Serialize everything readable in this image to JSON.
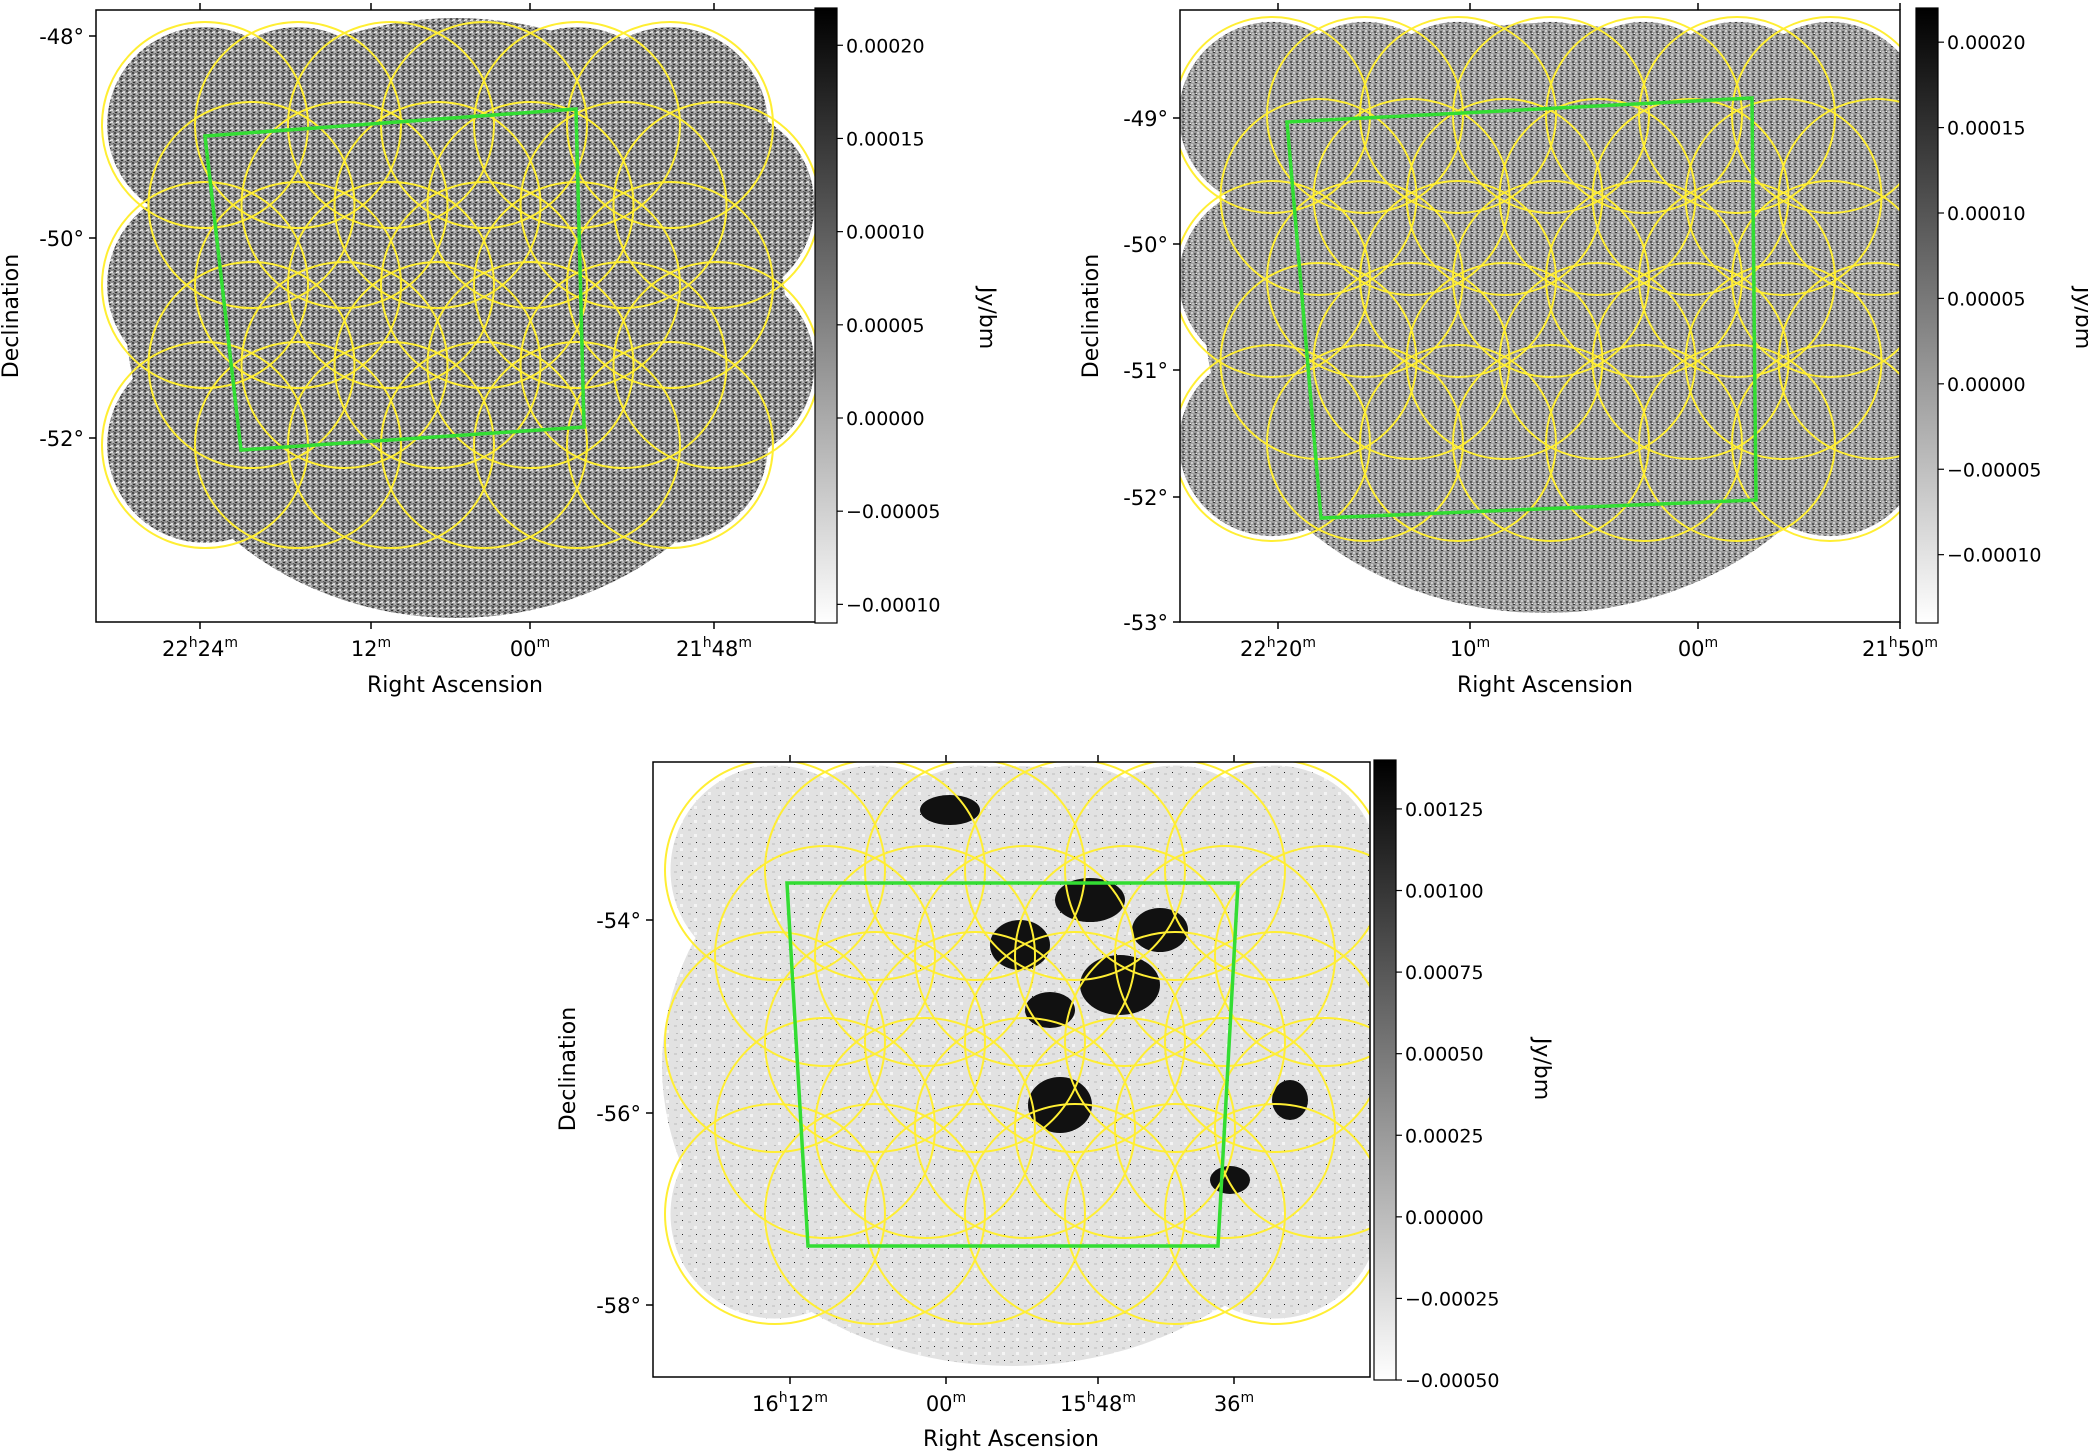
{
  "chart_data": [
    {
      "type": "heatmap",
      "panel": "top-left",
      "xlabel": "Right Ascension",
      "ylabel": "Declination",
      "x_ticks": [
        {
          "label_main": "22",
          "label_sup_h": "h",
          "label_mid": "24",
          "label_sup_m": "m",
          "label": "22h24m"
        },
        {
          "label_main": "",
          "label_sup_h": "",
          "label_mid": "12",
          "label_sup_m": "m",
          "label": "12m"
        },
        {
          "label_main": "",
          "label_sup_h": "",
          "label_mid": "00",
          "label_sup_m": "m",
          "label": "00m"
        },
        {
          "label_main": "21",
          "label_sup_h": "h",
          "label_mid": "48",
          "label_sup_m": "m",
          "label": "21h48m"
        }
      ],
      "y_ticks": [
        "-48°",
        "-50°",
        "-52°"
      ],
      "y_tick_values": [
        -48,
        -50,
        -52
      ],
      "dec_range": [
        -53.9,
        -47.7
      ],
      "colorbar": {
        "label": "Jy/bm",
        "range": [
          -0.00011,
          0.00022
        ],
        "ticks": [
          "0.00020",
          "0.00015",
          "0.00010",
          "0.00005",
          "0.00000",
          "−0.00005",
          "−0.00010"
        ],
        "tick_values": [
          0.0002,
          0.00015,
          0.0001,
          5e-05,
          0.0,
          -5e-05,
          -0.0001
        ]
      },
      "overlay": {
        "pointing_circles_color": "#ffee33",
        "footprint_color": "#33dd33"
      },
      "image_style": "noise"
    },
    {
      "type": "heatmap",
      "panel": "top-right",
      "xlabel": "Right Ascension",
      "ylabel": "Declination",
      "x_ticks": [
        {
          "label_main": "22",
          "label_sup_h": "h",
          "label_mid": "20",
          "label_sup_m": "m",
          "label": "22h20m"
        },
        {
          "label_main": "",
          "label_sup_h": "",
          "label_mid": "10",
          "label_sup_m": "m",
          "label": "10m"
        },
        {
          "label_main": "",
          "label_sup_h": "",
          "label_mid": "00",
          "label_sup_m": "m",
          "label": "00m"
        },
        {
          "label_main": "21",
          "label_sup_h": "h",
          "label_mid": "50",
          "label_sup_m": "m",
          "label": "21h50m"
        }
      ],
      "y_ticks": [
        "-49°",
        "-50°",
        "-51°",
        "-52°",
        "-53°"
      ],
      "y_tick_values": [
        -49,
        -50,
        -51,
        -52,
        -53
      ],
      "dec_range": [
        -53.0,
        -48.2
      ],
      "colorbar": {
        "label": "Jy/bm",
        "range": [
          -0.00014,
          0.00022
        ],
        "ticks": [
          "0.00020",
          "0.00015",
          "0.00010",
          "0.00005",
          "0.00000",
          "−0.00005",
          "−0.00010"
        ],
        "tick_values": [
          0.0002,
          0.00015,
          0.0001,
          5e-05,
          0.0,
          -5e-05,
          -0.0001
        ]
      },
      "overlay": {
        "pointing_circles_color": "#ffee33",
        "footprint_color": "#33dd33"
      },
      "image_style": "noise"
    },
    {
      "type": "heatmap",
      "panel": "bottom",
      "xlabel": "Right Ascension",
      "ylabel": "Declination",
      "x_ticks": [
        {
          "label_main": "16",
          "label_sup_h": "h",
          "label_mid": "12",
          "label_sup_m": "m",
          "label": "16h12m"
        },
        {
          "label_main": "",
          "label_sup_h": "",
          "label_mid": "00",
          "label_sup_m": "m",
          "label": "00m"
        },
        {
          "label_main": "15",
          "label_sup_h": "h",
          "label_mid": "48",
          "label_sup_m": "m",
          "label": "15h48m"
        },
        {
          "label_main": "",
          "label_sup_h": "",
          "label_mid": "36",
          "label_sup_m": "m",
          "label": "36m"
        }
      ],
      "y_ticks": [
        "-54°",
        "-56°",
        "-58°"
      ],
      "y_tick_values": [
        -54,
        -56,
        -58
      ],
      "dec_range": [
        -58.8,
        -52.4
      ],
      "colorbar": {
        "label": "Jy/bm",
        "range": [
          -0.0005,
          0.0014
        ],
        "ticks": [
          "0.00125",
          "0.00100",
          "0.00075",
          "0.00050",
          "0.00025",
          "0.00000",
          "−0.00025",
          "−0.00050"
        ],
        "tick_values": [
          0.00125,
          0.001,
          0.00075,
          0.0005,
          0.00025,
          0.0,
          -0.00025,
          -0.0005
        ]
      },
      "overlay": {
        "pointing_circles_color": "#ffee33",
        "footprint_color": "#33dd33"
      },
      "image_style": "diffuse"
    }
  ]
}
